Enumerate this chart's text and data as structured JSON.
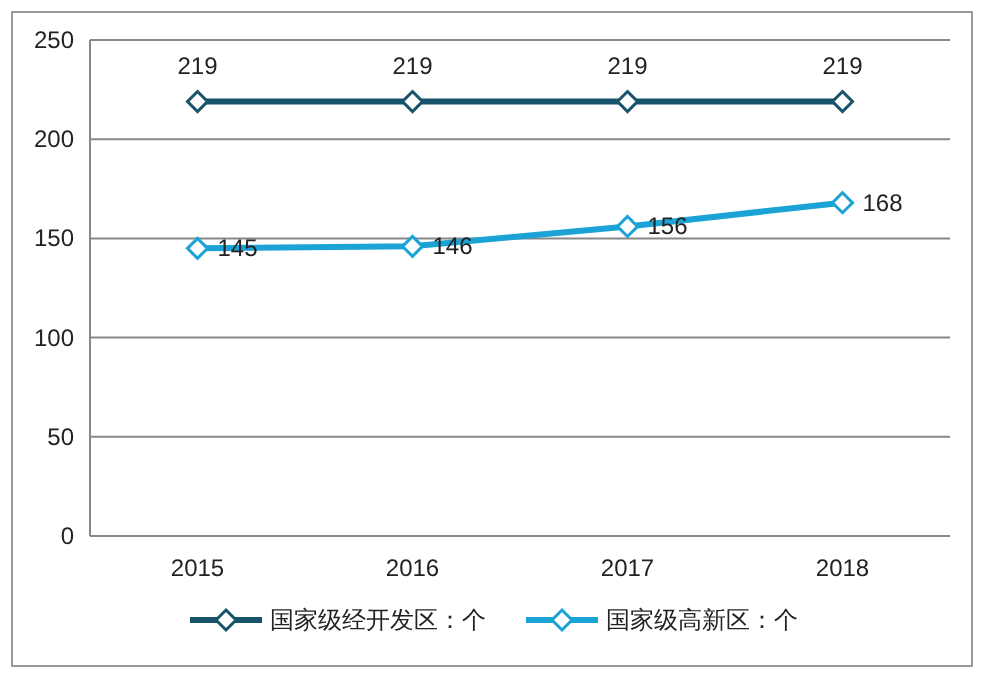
{
  "chart_data": {
    "type": "line",
    "categories": [
      "2015",
      "2016",
      "2017",
      "2018"
    ],
    "series": [
      {
        "name": "国家级经开发区：个",
        "color": "#17536a",
        "values": [
          219,
          219,
          219,
          219
        ]
      },
      {
        "name": "国家级高新区：个",
        "color": "#1ba3d6",
        "values": [
          145,
          146,
          156,
          168
        ]
      }
    ],
    "ylim": [
      0,
      250
    ],
    "yticks": [
      0,
      50,
      100,
      150,
      200,
      250
    ],
    "grid": "y",
    "legend": "bottom",
    "marker": "diamond",
    "line_style": "solid",
    "data_labels": true
  }
}
